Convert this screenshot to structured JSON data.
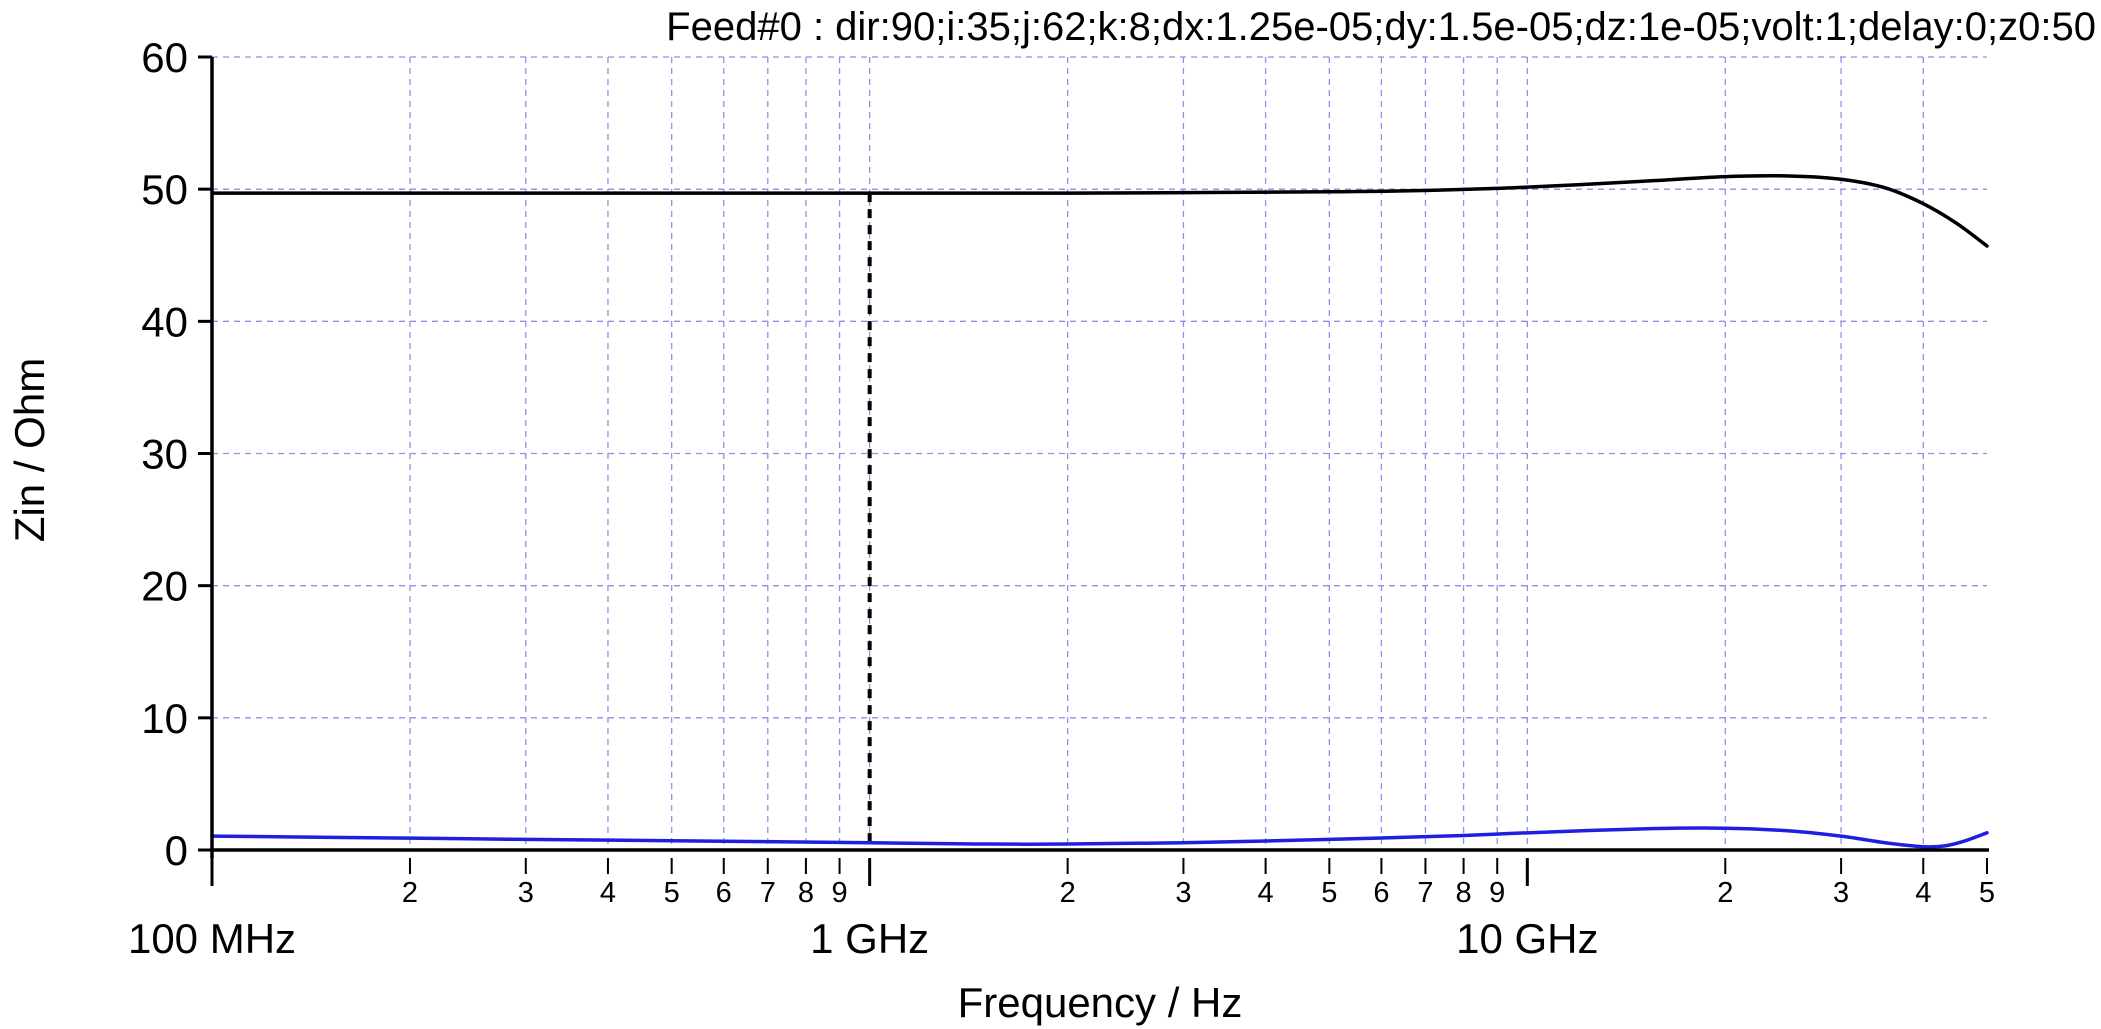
{
  "chart_data": {
    "type": "line",
    "title": "Feed#0 : dir:90;i:35;j:62;k:8;dx:1.25e-05;dy:1.5e-05;dz:1e-05;volt:1;delay:0;z0:50",
    "xlabel": "Frequency / Hz",
    "ylabel": "Zin / Ohm",
    "x_scale": "log",
    "xlim": [
      100000000,
      50000000000
    ],
    "ylim": [
      0,
      60
    ],
    "grid": true,
    "y_ticks": [
      {
        "value": 0,
        "label": "0"
      },
      {
        "value": 10,
        "label": "10"
      },
      {
        "value": 20,
        "label": "20"
      },
      {
        "value": 30,
        "label": "30"
      },
      {
        "value": 40,
        "label": "40"
      },
      {
        "value": 50,
        "label": "50"
      },
      {
        "value": 60,
        "label": "60"
      }
    ],
    "x_major_ticks": [
      {
        "value": 100000000,
        "label": "100 MHz"
      },
      {
        "value": 1000000000,
        "label": "1 GHz"
      },
      {
        "value": 10000000000,
        "label": "10 GHz"
      }
    ],
    "x_minor_ticks": [
      {
        "value": 200000000,
        "label": "2"
      },
      {
        "value": 300000000,
        "label": "3"
      },
      {
        "value": 400000000,
        "label": "4"
      },
      {
        "value": 500000000,
        "label": "5"
      },
      {
        "value": 600000000,
        "label": "6"
      },
      {
        "value": 700000000,
        "label": "7"
      },
      {
        "value": 800000000,
        "label": "8"
      },
      {
        "value": 900000000,
        "label": "9"
      },
      {
        "value": 2000000000,
        "label": "2"
      },
      {
        "value": 3000000000,
        "label": "3"
      },
      {
        "value": 4000000000,
        "label": "4"
      },
      {
        "value": 5000000000,
        "label": "5"
      },
      {
        "value": 6000000000,
        "label": "6"
      },
      {
        "value": 7000000000,
        "label": "7"
      },
      {
        "value": 8000000000,
        "label": "8"
      },
      {
        "value": 9000000000,
        "label": "9"
      },
      {
        "value": 20000000000,
        "label": "2"
      },
      {
        "value": 30000000000,
        "label": "3"
      },
      {
        "value": 40000000000,
        "label": "4"
      },
      {
        "value": 50000000000,
        "label": "5"
      }
    ],
    "marker": {
      "x": 1000000000,
      "y": 49.7,
      "style": "dashed",
      "color": "#000000"
    },
    "series": [
      {
        "color": "#c0392b",
        "x": [
          100000000,
          200000000,
          500000000,
          1000000000,
          2000000000,
          5000000000,
          7000000000,
          10000000000,
          15000000000,
          20000000000,
          25000000000,
          30000000000,
          35000000000,
          40000000000,
          45000000000,
          50000000000
        ],
        "y": [
          49.7,
          49.7,
          49.7,
          49.7,
          49.7,
          49.8,
          49.9,
          50.15,
          50.6,
          50.95,
          51.0,
          50.75,
          50.1,
          48.9,
          47.4,
          45.7
        ]
      },
      {
        "color": "#000000",
        "x": [
          100000000,
          200000000,
          500000000,
          1000000000,
          2000000000,
          5000000000,
          7000000000,
          10000000000,
          15000000000,
          20000000000,
          25000000000,
          30000000000,
          35000000000,
          40000000000,
          45000000000,
          50000000000
        ],
        "y": [
          49.7,
          49.7,
          49.7,
          49.7,
          49.7,
          49.8,
          49.9,
          50.15,
          50.6,
          50.95,
          51.0,
          50.75,
          50.1,
          48.9,
          47.4,
          45.7
        ]
      },
      {
        "color": "#1f1fe0",
        "x": [
          100000000,
          200000000,
          300000000,
          500000000,
          1000000000,
          1500000000,
          2000000000,
          3000000000,
          5000000000,
          8000000000,
          10000000000,
          15000000000,
          20000000000,
          25000000000,
          30000000000,
          35000000000,
          40000000000,
          43000000000,
          46000000000,
          50000000000
        ],
        "y": [
          1.05,
          0.9,
          0.8,
          0.7,
          0.55,
          0.45,
          0.45,
          0.55,
          0.8,
          1.1,
          1.3,
          1.6,
          1.65,
          1.45,
          1.05,
          0.55,
          0.25,
          0.3,
          0.65,
          1.3
        ]
      }
    ]
  }
}
